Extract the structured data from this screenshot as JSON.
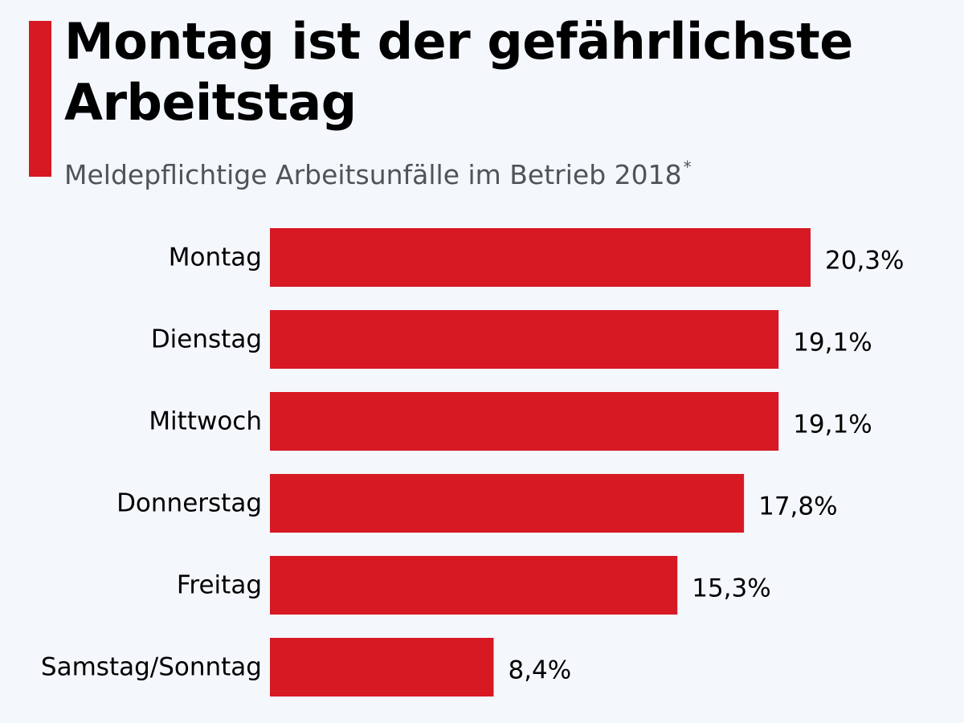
{
  "header": {
    "title": "Montag ist der gefährlichste Arbeitstag",
    "subtitle": "Meldepflichtige Arbeitsunfälle im Betrieb 2018",
    "subtitle_note": "*"
  },
  "colors": {
    "accent": "#d71923",
    "bar": "#d71923",
    "background": "#f4f7fb",
    "subtitle": "#4f5458"
  },
  "chart_data": {
    "type": "bar",
    "orientation": "horizontal",
    "categories": [
      "Montag",
      "Dienstag",
      "Mittwoch",
      "Donnerstag",
      "Freitag",
      "Samstag/Sonntag"
    ],
    "values": [
      20.3,
      19.1,
      19.1,
      17.8,
      15.3,
      8.4
    ],
    "value_labels": [
      "20,3%",
      "19,1%",
      "19,1%",
      "17,8%",
      "15,3%",
      "8,4%"
    ],
    "unit": "%",
    "xlim": [
      0,
      20.3
    ],
    "grid": false,
    "legend": "none"
  }
}
